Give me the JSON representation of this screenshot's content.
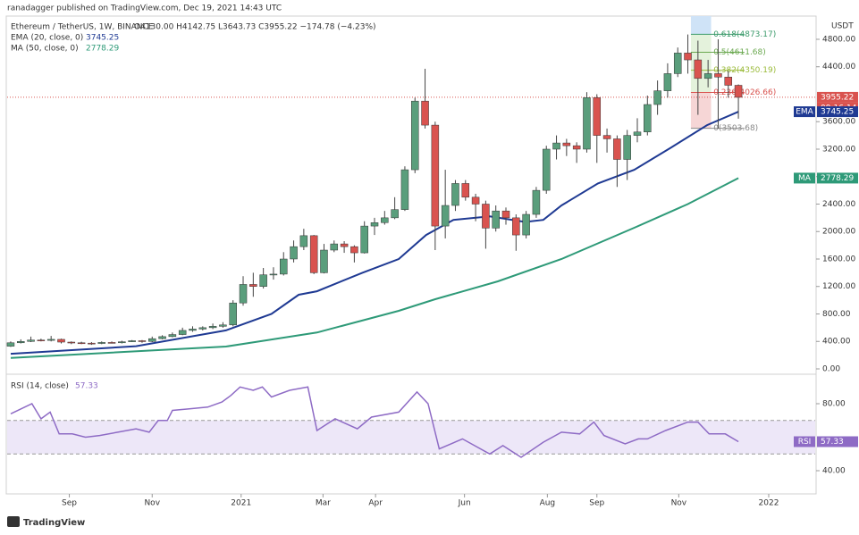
{
  "header": {
    "publisher": "ranadagger published on TradingView.com, Dec 19, 2021 14:43 UTC",
    "symbol": "Ethereum / TetherUS, 1W, BINANCE",
    "ohlc": "O4130.00 H4142.75 L3643.73 C3955.22 −174.78 (−4.23%)"
  },
  "chart_data": [
    {
      "type": "candlestick",
      "currency": "USDT",
      "up_color": "#5a9e7c",
      "down_color": "#d9534f",
      "open": [
        330,
        380,
        400,
        420,
        415,
        430,
        390,
        380,
        375,
        370,
        385,
        380,
        395,
        410,
        400,
        440,
        470,
        500,
        560,
        580,
        600,
        620,
        640,
        960,
        1230,
        1200,
        1370,
        1380,
        1600,
        1780,
        1940,
        1400,
        1730,
        1820,
        1780,
        1690,
        2080,
        2130,
        2200,
        2320,
        2900,
        3900,
        3550,
        2080,
        2380,
        2700,
        2500,
        2400,
        2050,
        2300,
        2200,
        1950,
        2250,
        2600,
        3200,
        3290,
        3250,
        3200,
        3950,
        3400,
        3350,
        3050,
        3400,
        3450,
        3850,
        4050,
        4300,
        4600,
        4500,
        4230,
        4300,
        4250,
        4130
      ],
      "high": [
        400,
        430,
        470,
        440,
        480,
        440,
        400,
        395,
        390,
        400,
        400,
        410,
        420,
        420,
        470,
        490,
        530,
        600,
        620,
        620,
        660,
        680,
        1000,
        1350,
        1400,
        1470,
        1480,
        1700,
        1870,
        2040,
        1950,
        1820,
        1870,
        1860,
        1800,
        2150,
        2200,
        2300,
        2500,
        2950,
        3950,
        4370,
        3600,
        2900,
        2750,
        2750,
        2550,
        2450,
        2380,
        2350,
        2250,
        2300,
        2650,
        3250,
        3400,
        3350,
        3300,
        4030,
        4000,
        3500,
        3400,
        3480,
        3650,
        3980,
        4200,
        4450,
        4680,
        4870,
        4780,
        4500,
        4800,
        4340,
        4142.75
      ],
      "low": [
        320,
        370,
        390,
        400,
        400,
        370,
        360,
        360,
        350,
        360,
        370,
        370,
        390,
        380,
        390,
        430,
        460,
        490,
        540,
        560,
        580,
        600,
        620,
        920,
        1050,
        1170,
        1300,
        1360,
        1550,
        1730,
        1380,
        1390,
        1700,
        1690,
        1550,
        1680,
        1950,
        2100,
        2180,
        2300,
        2850,
        3500,
        1730,
        1900,
        2300,
        2450,
        2150,
        1750,
        2000,
        2100,
        1720,
        1900,
        2200,
        2550,
        3050,
        3100,
        3000,
        3150,
        3000,
        3150,
        2650,
        2750,
        3300,
        3400,
        3700,
        3950,
        4250,
        4300,
        3700,
        4100,
        3500,
        3950,
        3643.73
      ],
      "close": [
        380,
        400,
        420,
        415,
        430,
        390,
        380,
        375,
        370,
        385,
        380,
        395,
        410,
        400,
        440,
        470,
        500,
        560,
        580,
        600,
        620,
        640,
        960,
        1230,
        1200,
        1370,
        1380,
        1600,
        1780,
        1940,
        1400,
        1730,
        1820,
        1780,
        1690,
        2080,
        2130,
        2200,
        2320,
        2900,
        3900,
        3550,
        2080,
        2380,
        2700,
        2500,
        2400,
        2050,
        2300,
        2200,
        1950,
        2250,
        2600,
        3200,
        3290,
        3250,
        3200,
        3950,
        3400,
        3350,
        3050,
        3400,
        3450,
        3850,
        4050,
        4300,
        4600,
        4500,
        4230,
        4300,
        4250,
        4130,
        3955.22
      ],
      "last_label": "3955.22",
      "countdown": "09:16:14",
      "xlim": [
        -0.35,
        79.6
      ],
      "xticks": [
        {
          "value": 5.8,
          "label": "Sep"
        },
        {
          "value": 14.0,
          "label": "Nov"
        },
        {
          "value": 22.8,
          "label": "2021"
        },
        {
          "value": 30.9,
          "label": "Mar"
        },
        {
          "value": 36.1,
          "label": "Apr"
        },
        {
          "value": 44.9,
          "label": "Jun"
        },
        {
          "value": 53.1,
          "label": "Aug"
        },
        {
          "value": 58.0,
          "label": "Sep"
        },
        {
          "value": 66.1,
          "label": "Nov"
        },
        {
          "value": 75.0,
          "label": "2022"
        }
      ],
      "ylim": [
        0,
        5138
      ],
      "yticks": [
        {
          "value": 0,
          "label": "0.00"
        },
        {
          "value": 400,
          "label": "400.00"
        },
        {
          "value": 800,
          "label": "800.00"
        },
        {
          "value": 1200,
          "label": "1200.00"
        },
        {
          "value": 1600,
          "label": "1600.00"
        },
        {
          "value": 2000,
          "label": "2000.00"
        },
        {
          "value": 2400,
          "label": "2400.00"
        },
        {
          "value": 2800,
          "label": "2800.00"
        },
        {
          "value": 3200,
          "label": "3200.00"
        },
        {
          "value": 3600,
          "label": "3600.00"
        },
        {
          "value": 4400,
          "label": "4400.00"
        },
        {
          "value": 4800,
          "label": "4800.00"
        }
      ],
      "series": [
        {
          "name": "EMA (20, close, 0)",
          "tag": "EMA",
          "color": "#1f3a93",
          "value_label": "3745.25",
          "x": [
            0,
            12.4,
            21.3,
            25.8,
            28.5,
            30.3,
            34.8,
            38.4,
            41.1,
            43.8,
            47.4,
            50.9,
            52.7,
            54.5,
            58.1,
            61.7,
            65.3,
            68.9,
            72
          ],
          "values": [
            220,
            330,
            560,
            800,
            1080,
            1130,
            1400,
            1600,
            1950,
            2170,
            2220,
            2140,
            2170,
            2380,
            2700,
            2900,
            3220,
            3550,
            3745.25
          ]
        },
        {
          "name": "MA (50, close, 0)",
          "tag": "MA",
          "color": "#2e9a78",
          "value_label": "2778.29",
          "x": [
            0,
            21.3,
            30.3,
            38.4,
            42,
            48.2,
            54.5,
            61.7,
            67,
            72
          ],
          "values": [
            160,
            325,
            530,
            845,
            1015,
            1275,
            1600,
            2055,
            2400,
            2778.29
          ]
        }
      ],
      "fib": [
        {
          "value": 4873.17,
          "label": "0.618(4873.17)"
        },
        {
          "value": 4611.68,
          "label": "0.5(4611.68)"
        },
        {
          "value": 4350.19,
          "label": "0.382(4350.19)"
        },
        {
          "value": 4026.66,
          "label": "0.236(4026.66)"
        },
        {
          "value": 3503.68,
          "label": "0(3503.68)"
        }
      ]
    },
    {
      "type": "line",
      "band": [
        50,
        70
      ],
      "xlim": [
        -0.35,
        79.6
      ],
      "ylim": [
        28.8,
        94.4
      ],
      "yticks": [
        {
          "value": 40,
          "label": "40.00"
        },
        {
          "value": 80,
          "label": "80.00"
        }
      ],
      "series": [
        {
          "name": "RSI (14, close)",
          "tag": "RSI",
          "color": "#8e6bc5",
          "value_label": "57.33",
          "x": [
            0,
            2.1,
            3,
            3.9,
            4.8,
            6.1,
            7.4,
            8.8,
            10.6,
            12.4,
            13.7,
            14.6,
            15.5,
            16,
            17.8,
            19.5,
            20.9,
            21.8,
            22.7,
            24,
            24.9,
            25.8,
            27.6,
            29.4,
            30.3,
            32.1,
            34.3,
            35.7,
            38.4,
            40.2,
            41.3,
            42.4,
            44.7,
            47.4,
            48.7,
            50.5,
            52.7,
            54.5,
            56.3,
            57.7,
            58.7,
            60.8,
            62.1,
            63,
            64.8,
            67,
            68,
            69.1,
            70.7,
            72
          ],
          "values": [
            74,
            80,
            71,
            75,
            62,
            62,
            60,
            61,
            63,
            65,
            63,
            70,
            70,
            76,
            77,
            78,
            81,
            85,
            90,
            88,
            90,
            84,
            88,
            90,
            64,
            71,
            65,
            72,
            75,
            87,
            80,
            53,
            59,
            50,
            55,
            48,
            57,
            63,
            62,
            69,
            61,
            56,
            59,
            59,
            64,
            69,
            69,
            62,
            62,
            57.33
          ]
        }
      ]
    }
  ],
  "footer": "TradingView"
}
